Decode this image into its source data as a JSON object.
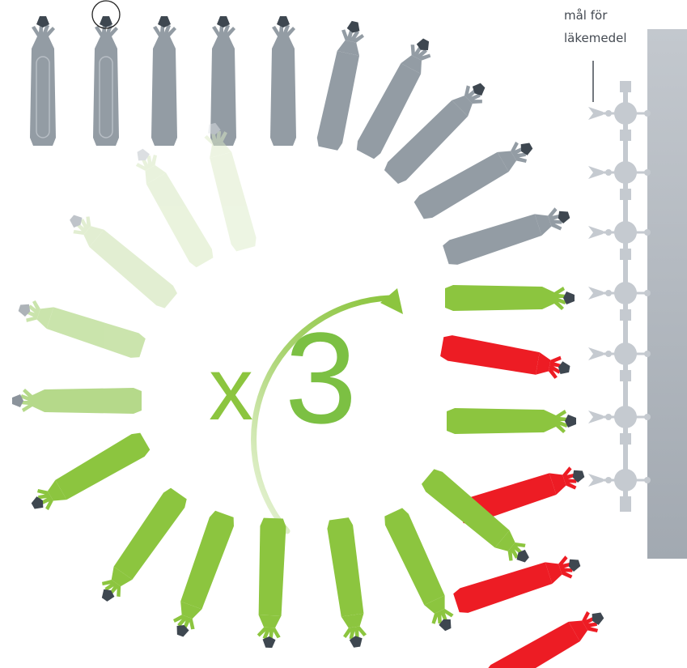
{
  "target_label": {
    "line1": "mål för",
    "line2": "läkemedel"
  },
  "multiplier": {
    "prefix": "x",
    "number": "3"
  },
  "colors": {
    "gray": "#939ca4",
    "gray_dark": "#7f8993",
    "tip": "#3e4750",
    "green": "#8cc53f",
    "green_light": "#b5d98a",
    "green_pale": "#dcebc7",
    "red": "#ed1c24",
    "wall": "#a9b0b8",
    "receptor": "#c5cad0"
  },
  "icons": {
    "antibody": "antibody-molecule-icon",
    "receptor": "receptor-icon",
    "cycle_arrow": "cycle-arrow-icon"
  }
}
